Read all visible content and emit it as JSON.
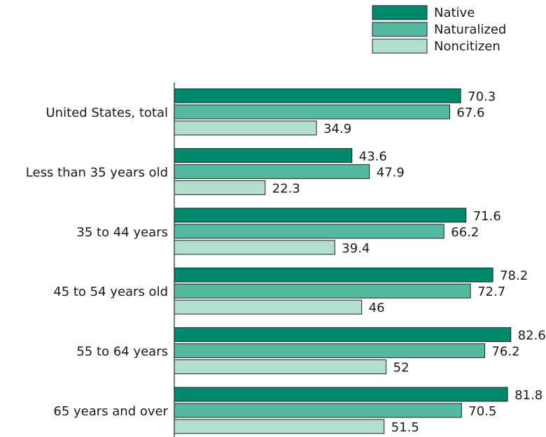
{
  "chart_data": {
    "type": "bar",
    "orientation": "horizontal",
    "categories": [
      "United States, total",
      "Less than 35 years old",
      "35 to 44 years",
      "45 to 54 years old",
      "55 to 64 years",
      "65 years and over"
    ],
    "series": [
      {
        "name": "Native",
        "color": "#00896b",
        "values": [
          70.3,
          43.6,
          71.6,
          78.2,
          82.6,
          81.8
        ],
        "labels": [
          "70.3",
          "43.6",
          "71.6",
          "78.2",
          "82.6",
          "81.8"
        ]
      },
      {
        "name": "Naturalized",
        "color": "#55b9a1",
        "values": [
          67.6,
          47.9,
          66.2,
          72.7,
          76.2,
          70.5
        ],
        "labels": [
          "67.6",
          "47.9",
          "66.2",
          "72.7",
          "76.2",
          "70.5"
        ]
      },
      {
        "name": "Noncitizen",
        "color": "#b2ddd1",
        "values": [
          34.9,
          22.3,
          39.4,
          46,
          52,
          51.5
        ],
        "labels": [
          "34.9",
          "22.3",
          "39.4",
          "46",
          "52",
          "51.5"
        ]
      }
    ],
    "xlim": [
      0,
      100
    ],
    "grid": false,
    "legend_position": "top-right"
  }
}
